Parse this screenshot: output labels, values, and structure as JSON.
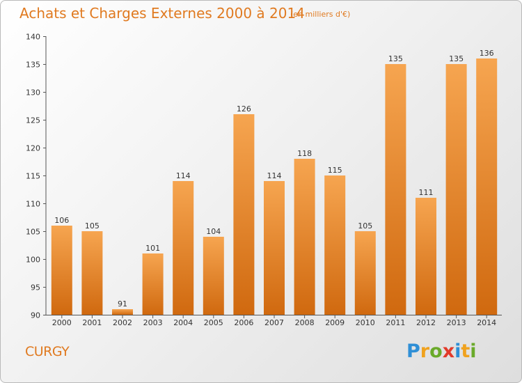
{
  "title": "Achats et Charges Externes 2000 à 2014",
  "subtitle": "(en milliers d'€)",
  "town": "CURGY",
  "logo": {
    "letters": [
      "P",
      "r",
      "o",
      "x",
      "i",
      "t",
      "i"
    ],
    "colors": [
      "#2f8fd6",
      "#f0a21e",
      "#6aaa2a",
      "#e23a2a",
      "#2f8fd6",
      "#f0a21e",
      "#6aaa2a"
    ]
  },
  "colors": {
    "accent": "#e07a20",
    "bar_top": "#f6a550",
    "bar_bottom": "#d0690f"
  },
  "chart_data": {
    "type": "bar",
    "title": "Achats et Charges Externes 2000 à 2014",
    "subtitle": "(en milliers d'€)",
    "categories": [
      "2000",
      "2001",
      "2002",
      "2003",
      "2004",
      "2005",
      "2006",
      "2007",
      "2008",
      "2009",
      "2010",
      "2011",
      "2012",
      "2013",
      "2014"
    ],
    "values": [
      106,
      105,
      91,
      101,
      114,
      104,
      126,
      114,
      118,
      115,
      105,
      135,
      111,
      135,
      136
    ],
    "ylim": [
      90,
      140
    ],
    "yticks": [
      90,
      95,
      100,
      105,
      110,
      115,
      120,
      125,
      130,
      135,
      140
    ],
    "grid": false
  }
}
